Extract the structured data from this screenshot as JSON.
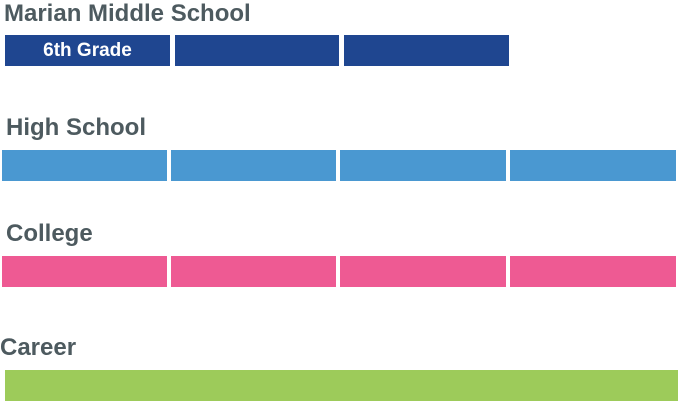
{
  "sections": [
    {
      "title": "Marian Middle School",
      "segment_label": "6th Grade"
    },
    {
      "title": "High School"
    },
    {
      "title": "College"
    },
    {
      "title": "Career"
    }
  ]
}
